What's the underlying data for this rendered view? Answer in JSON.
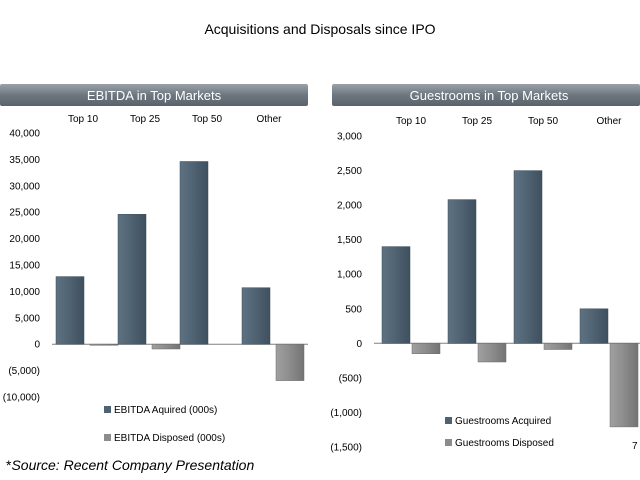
{
  "title": "Acquisitions and Disposals since IPO",
  "source": {
    "prefix": "*",
    "text": "Source: Recent Company Presentation"
  },
  "colors": {
    "acquired": "#4f6272",
    "disposed": "#8c8c8c",
    "header": "#6e7780"
  },
  "chart_data": [
    {
      "type": "bar",
      "title": "EBITDA in Top Markets",
      "categories": [
        "Top 10",
        "Top 25",
        "Top 50",
        "Other"
      ],
      "ylim": [
        -10000,
        40000
      ],
      "yticks": [
        -10000,
        -5000,
        0,
        5000,
        10000,
        15000,
        20000,
        25000,
        30000,
        35000,
        40000
      ],
      "ytick_labels": [
        "(10,000)",
        "(5,000)",
        "0",
        "5,000",
        "10,000",
        "15,000",
        "20,000",
        "25,000",
        "30,000",
        "35,000",
        "40,000"
      ],
      "legend_position": "bottom",
      "series": [
        {
          "name": "EBITDA Aquired (000s)",
          "values": [
            12800,
            24600,
            34600,
            10700
          ]
        },
        {
          "name": "EBITDA Disposed (000s)",
          "values": [
            -200,
            -900,
            0,
            -6900
          ]
        }
      ]
    },
    {
      "type": "bar",
      "title": "Guestrooms in Top Markets",
      "categories": [
        "Top 10",
        "Top 25",
        "Top 50",
        "Other"
      ],
      "ylim": [
        -1500,
        3000
      ],
      "yticks": [
        -1500,
        -1000,
        -500,
        0,
        500,
        1000,
        1500,
        2000,
        2500,
        3000
      ],
      "ytick_labels": [
        "(1,500)",
        "(1,000)",
        "(500)",
        "0",
        "500",
        "1,000",
        "1,500",
        "2,000",
        "2,500",
        "3,000"
      ],
      "legend_position": "bottom",
      "annotation": "7",
      "series": [
        {
          "name": "Guestrooms Acquired",
          "values": [
            1400,
            2080,
            2500,
            500
          ]
        },
        {
          "name": "Guestrooms Disposed",
          "values": [
            -150,
            -270,
            -90,
            -1210
          ]
        }
      ]
    }
  ]
}
